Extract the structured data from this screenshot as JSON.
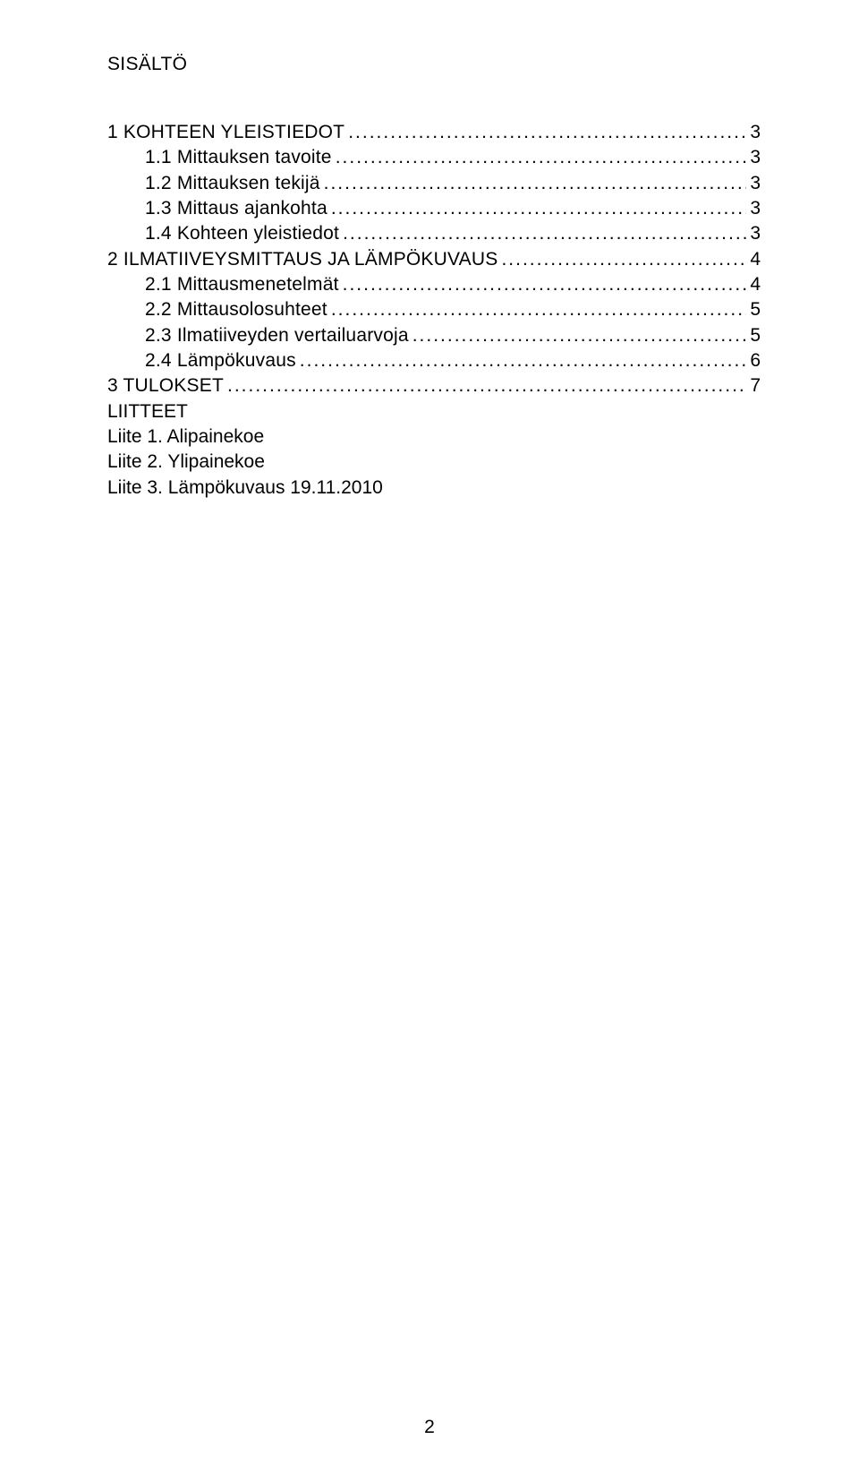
{
  "heading": "SISÄLTÖ",
  "toc": [
    {
      "label": "1 KOHTEEN YLEISTIEDOT",
      "page": "3",
      "indent": 0
    },
    {
      "label": "1.1 Mittauksen tavoite",
      "page": "3",
      "indent": 1
    },
    {
      "label": "1.2 Mittauksen tekijä",
      "page": "3",
      "indent": 1
    },
    {
      "label": "1.3 Mittaus ajankohta",
      "page": "3",
      "indent": 1
    },
    {
      "label": "1.4 Kohteen yleistiedot",
      "page": "3",
      "indent": 1
    },
    {
      "label": "2 ILMATIIVEYSMITTAUS JA LÄMPÖKUVAUS",
      "page": "4",
      "indent": 0
    },
    {
      "label": "2.1 Mittausmenetelmät",
      "page": "4",
      "indent": 1
    },
    {
      "label": "2.2 Mittausolosuhteet",
      "page": "5",
      "indent": 1
    },
    {
      "label": "2.3 Ilmatiiveyden vertailuarvoja",
      "page": "5",
      "indent": 1
    },
    {
      "label": "2.4 Lämpökuvaus",
      "page": "6",
      "indent": 1
    },
    {
      "label": "3 TULOKSET",
      "page": "7",
      "indent": 0
    }
  ],
  "appendices_heading": "LIITTEET",
  "appendices": [
    "Liite 1. Alipainekoe",
    "Liite 2. Ylipainekoe",
    "Liite 3. Lämpökuvaus 19.11.2010"
  ],
  "page_number": "2",
  "colors": {
    "background": "#ffffff",
    "text": "#000000"
  },
  "typography": {
    "font_family": "Arial",
    "font_size_pt": 16,
    "heading_size_pt": 16
  }
}
